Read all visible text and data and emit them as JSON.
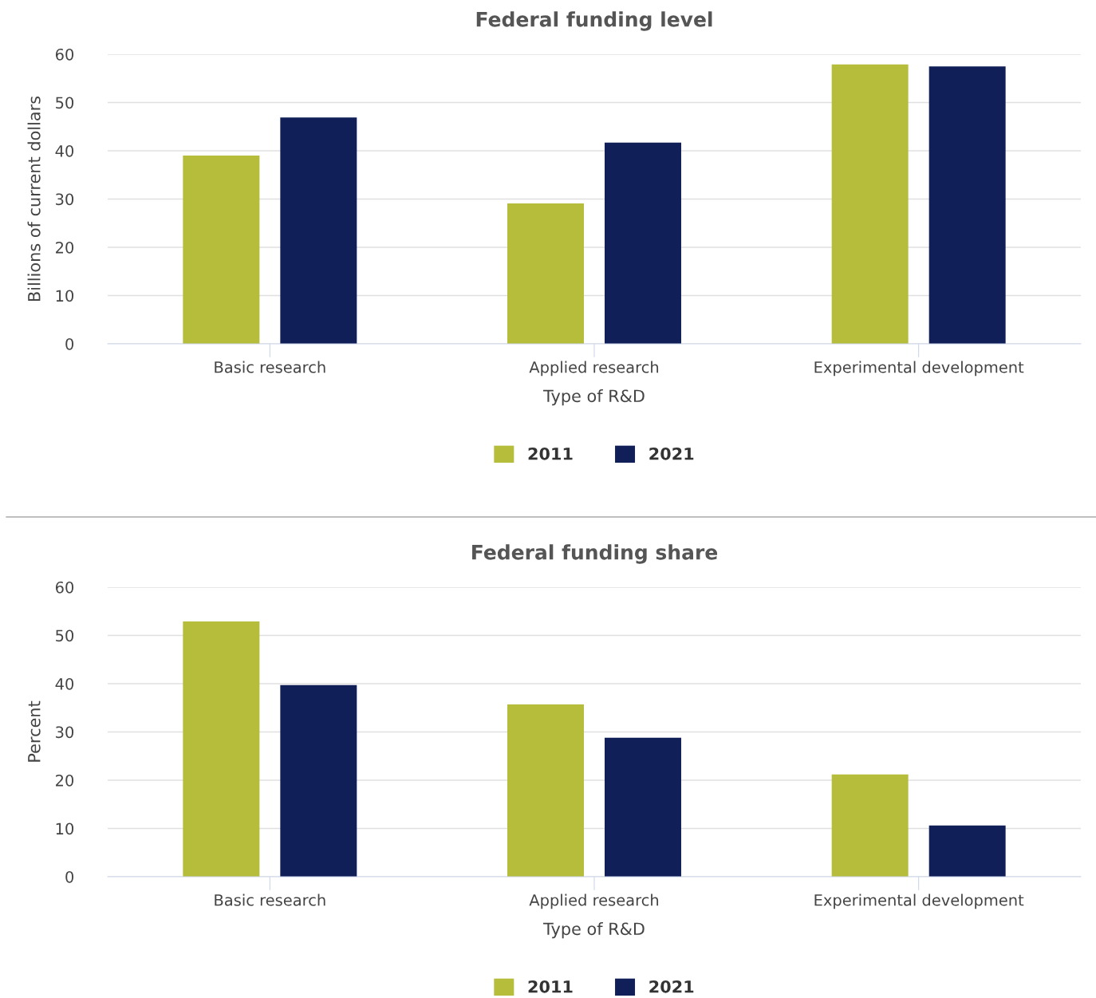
{
  "chart_data": [
    {
      "type": "bar",
      "title": "Federal funding level",
      "xlabel": "Type of R&D",
      "ylabel": "Billions of current dollars",
      "categories": [
        "Basic research",
        "Applied research",
        "Experimental development"
      ],
      "series": [
        {
          "name": "2011",
          "color": "#b5bd3a",
          "values": [
            39.0,
            29.1,
            57.9
          ]
        },
        {
          "name": "2021",
          "color": "#111f58",
          "values": [
            46.9,
            41.7,
            57.5
          ]
        }
      ],
      "ylim": [
        0,
        60
      ],
      "yticks": [
        0,
        10,
        20,
        30,
        40,
        50,
        60
      ],
      "grid": "y",
      "legend": "bottom"
    },
    {
      "type": "bar",
      "title": "Federal funding share",
      "xlabel": "Type of R&D",
      "ylabel": "Percent",
      "categories": [
        "Basic research",
        "Applied research",
        "Experimental development"
      ],
      "series": [
        {
          "name": "2011",
          "color": "#b5bd3a",
          "values": [
            52.9,
            35.7,
            21.2
          ]
        },
        {
          "name": "2021",
          "color": "#111f58",
          "values": [
            39.7,
            28.8,
            10.6
          ]
        }
      ],
      "ylim": [
        0,
        60
      ],
      "yticks": [
        0,
        10,
        20,
        30,
        40,
        50,
        60
      ],
      "grid": "y",
      "legend": "bottom"
    }
  ]
}
